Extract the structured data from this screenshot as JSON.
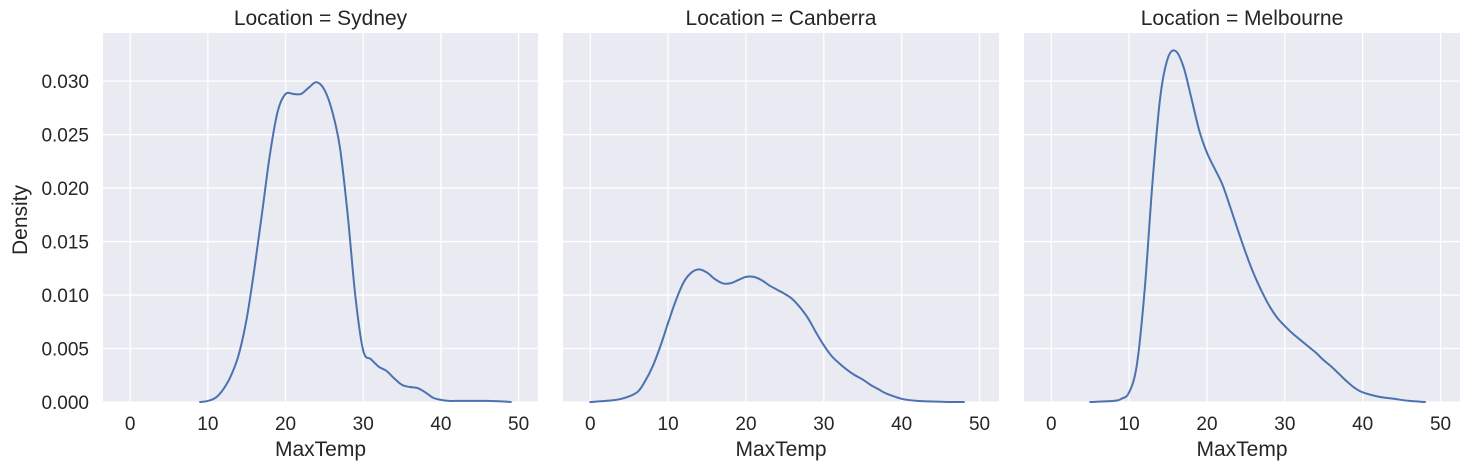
{
  "chart_data": {
    "type": "line",
    "plot_kind": "kde",
    "facet": "Location",
    "shared_y": true,
    "xlabel": "MaxTemp",
    "ylabel": "Density",
    "xlim": [
      -3.5,
      52.5
    ],
    "ylim": [
      0,
      0.0345
    ],
    "xticks": [
      0,
      10,
      20,
      30,
      40,
      50
    ],
    "yticks": [
      0.0,
      0.005,
      0.01,
      0.015,
      0.02,
      0.025,
      0.03
    ],
    "ytick_labels": [
      "0.000",
      "0.005",
      "0.010",
      "0.015",
      "0.020",
      "0.025",
      "0.030"
    ],
    "grid": true,
    "background": "#eaeaf2",
    "grid_color": "#ffffff",
    "line_color": "#4c72b0",
    "panels": [
      {
        "title": "Location = Sydney",
        "x": [
          9,
          10,
          11,
          12,
          13,
          14,
          15,
          16,
          17,
          18,
          19,
          20,
          21,
          22,
          23,
          24,
          25,
          26,
          27,
          28,
          29,
          30,
          31,
          32,
          33,
          34,
          35,
          36,
          37,
          38,
          39,
          40,
          41,
          42,
          44,
          46,
          48,
          49
        ],
        "y": [
          0.0,
          0.0001,
          0.0004,
          0.0012,
          0.0025,
          0.0045,
          0.0078,
          0.0125,
          0.0178,
          0.0232,
          0.0272,
          0.0288,
          0.0288,
          0.0288,
          0.0294,
          0.0299,
          0.0292,
          0.0272,
          0.0238,
          0.0175,
          0.0098,
          0.0048,
          0.004,
          0.0033,
          0.0029,
          0.0022,
          0.0016,
          0.0014,
          0.0013,
          0.0009,
          0.0004,
          0.0002,
          0.0001,
          0.0001,
          0.0001,
          0.0001,
          5e-05,
          0.0
        ]
      },
      {
        "title": "Location = Canberra",
        "x": [
          0,
          2,
          4,
          6,
          7,
          8,
          9,
          10,
          11,
          12,
          13,
          14,
          15,
          16,
          17,
          18,
          19,
          20,
          21,
          22,
          23,
          24,
          25,
          26,
          27,
          28,
          29,
          30,
          31,
          32,
          33,
          34,
          35,
          36,
          37,
          38,
          40,
          42,
          44,
          46,
          48
        ],
        "y": [
          0.0,
          0.0001,
          0.0003,
          0.0009,
          0.0019,
          0.0033,
          0.0052,
          0.0074,
          0.0095,
          0.0112,
          0.0121,
          0.0124,
          0.0121,
          0.0115,
          0.0111,
          0.0111,
          0.0114,
          0.0117,
          0.0117,
          0.0114,
          0.0109,
          0.0105,
          0.0101,
          0.0096,
          0.0088,
          0.0078,
          0.0065,
          0.0053,
          0.0043,
          0.0036,
          0.003,
          0.0025,
          0.0021,
          0.0016,
          0.0012,
          0.0008,
          0.0003,
          0.0001,
          5e-05,
          0.0,
          0.0
        ]
      },
      {
        "title": "Location = Melbourne",
        "x": [
          5,
          8,
          9,
          10,
          11,
          12,
          13,
          14,
          15,
          16,
          17,
          18,
          19,
          20,
          21,
          22,
          23,
          24,
          25,
          26,
          27,
          28,
          29,
          30,
          31,
          32,
          33,
          34,
          35,
          36,
          37,
          38,
          39,
          40,
          42,
          44,
          46,
          48
        ],
        "y": [
          0.0,
          0.0001,
          0.0003,
          0.0009,
          0.0035,
          0.0105,
          0.0205,
          0.0285,
          0.0322,
          0.0328,
          0.0313,
          0.0284,
          0.0254,
          0.0233,
          0.0218,
          0.0203,
          0.0182,
          0.016,
          0.0139,
          0.012,
          0.0104,
          0.009,
          0.0079,
          0.0071,
          0.0064,
          0.0058,
          0.0052,
          0.0046,
          0.0039,
          0.0033,
          0.0026,
          0.0019,
          0.0013,
          0.0009,
          0.0005,
          0.0003,
          0.0001,
          0.0
        ]
      }
    ]
  }
}
